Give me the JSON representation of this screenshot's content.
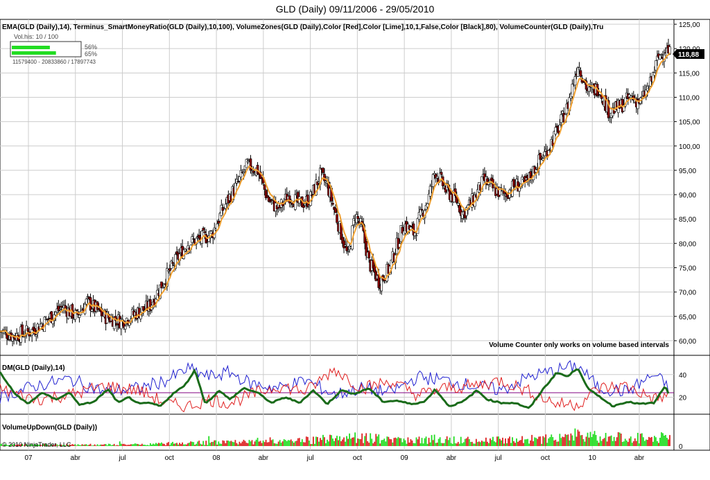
{
  "title": "GLD (Daily)  09/11/2006 - 29/05/2010",
  "indicator_label": "EMA(GLD (Daily),14), Terminus_SmartMoneyRatio(GLD (Daily),10,100), VolumeZones(GLD (Daily),Color [Red],Color [Lime],10,1,False,Color [Black],80), VolumeCounter(GLD (Daily),Tru",
  "volhis": {
    "label": "Vol.his: 10 / 100",
    "bar1_pct": "56%",
    "bar1_fraction": 0.56,
    "bar2_pct": "65%",
    "bar2_fraction": 0.65,
    "range_text": "11579400   -   20833860 / 17897743"
  },
  "last_price_label": "118,88",
  "note": "Volume Counter only works on volume based intervals",
  "dm_label": "DM(GLD (Daily),14)",
  "vud_label": "VolumeUpDown(GLD (Daily))",
  "copyright": "© 2010 NinjaTrader, LLC",
  "colors": {
    "up": "#000000",
    "down": "#8b0000",
    "ema": "#f0a030",
    "dm_plus": "#2020d0",
    "dm_minus": "#e02020",
    "adx": "#1a6b1a",
    "vol_up": "#22dd22",
    "vol_down": "#dd2222",
    "grid": "#cccccc"
  },
  "chart_data": [
    {
      "type": "line",
      "name": "price",
      "ylim": [
        57,
        126
      ],
      "y_ticks": [
        "125,00",
        "120,00",
        "115,00",
        "110,00",
        "105,00",
        "100,00",
        "95,00",
        "90,00",
        "85,00",
        "80,00",
        "75,00",
        "70,00",
        "65,00",
        "60,00"
      ],
      "x_ticks": [
        "07",
        "abr",
        "jul",
        "oct",
        "08",
        "abr",
        "jul",
        "oct",
        "09",
        "abr",
        "jul",
        "oct",
        "10",
        "abr"
      ],
      "anchors": [
        [
          0,
          62
        ],
        [
          20,
          61
        ],
        [
          45,
          62
        ],
        [
          65,
          64
        ],
        [
          90,
          67
        ],
        [
          110,
          65
        ],
        [
          125,
          68
        ],
        [
          150,
          65
        ],
        [
          175,
          64
        ],
        [
          200,
          66
        ],
        [
          215,
          67
        ],
        [
          230,
          71
        ],
        [
          255,
          77
        ],
        [
          270,
          80
        ],
        [
          290,
          81
        ],
        [
          305,
          82
        ],
        [
          320,
          87
        ],
        [
          340,
          92
        ],
        [
          355,
          96
        ],
        [
          370,
          95
        ],
        [
          385,
          89
        ],
        [
          400,
          87
        ],
        [
          415,
          90
        ],
        [
          430,
          88
        ],
        [
          445,
          89
        ],
        [
          460,
          94
        ],
        [
          470,
          92
        ],
        [
          480,
          87
        ],
        [
          490,
          82
        ],
        [
          500,
          77
        ],
        [
          510,
          86
        ],
        [
          520,
          83
        ],
        [
          530,
          76
        ],
        [
          545,
          72
        ],
        [
          560,
          75
        ],
        [
          580,
          84
        ],
        [
          595,
          82
        ],
        [
          605,
          86
        ],
        [
          615,
          89
        ],
        [
          625,
          95
        ],
        [
          640,
          91
        ],
        [
          655,
          89
        ],
        [
          665,
          86
        ],
        [
          680,
          89
        ],
        [
          695,
          93
        ],
        [
          710,
          91
        ],
        [
          725,
          90
        ],
        [
          740,
          92
        ],
        [
          755,
          92
        ],
        [
          770,
          96
        ],
        [
          785,
          99
        ],
        [
          800,
          103
        ],
        [
          815,
          108
        ],
        [
          830,
          117
        ],
        [
          845,
          111
        ],
        [
          860,
          112
        ],
        [
          875,
          107
        ],
        [
          890,
          108
        ],
        [
          905,
          110
        ],
        [
          920,
          109
        ],
        [
          935,
          113
        ],
        [
          945,
          118
        ],
        [
          955,
          120
        ],
        [
          962,
          119
        ]
      ],
      "last": 118.88
    },
    {
      "type": "line",
      "name": "DM(GLD (Daily),14)",
      "ylim": [
        5,
        57
      ],
      "y_ticks": [
        "40",
        "20"
      ],
      "series": [
        {
          "name": "ADX",
          "anchors": [
            [
              0,
              42
            ],
            [
              20,
              24
            ],
            [
              40,
              14
            ],
            [
              60,
              24
            ],
            [
              80,
              18
            ],
            [
              100,
              24
            ],
            [
              115,
              13
            ],
            [
              135,
              16
            ],
            [
              155,
              27
            ],
            [
              170,
              15
            ],
            [
              185,
              20
            ],
            [
              200,
              14
            ],
            [
              215,
              15
            ],
            [
              230,
              12
            ],
            [
              250,
              24
            ],
            [
              265,
              30
            ],
            [
              280,
              44
            ],
            [
              295,
              14
            ],
            [
              315,
              26
            ],
            [
              330,
              18
            ],
            [
              350,
              28
            ],
            [
              370,
              24
            ],
            [
              390,
              15
            ],
            [
              410,
              20
            ],
            [
              430,
              15
            ],
            [
              450,
              26
            ],
            [
              470,
              14
            ],
            [
              490,
              26
            ],
            [
              510,
              23
            ],
            [
              530,
              28
            ],
            [
              550,
              16
            ],
            [
              570,
              17
            ],
            [
              590,
              14
            ],
            [
              610,
              16
            ],
            [
              625,
              27
            ],
            [
              645,
              12
            ],
            [
              665,
              16
            ],
            [
              685,
              26
            ],
            [
              700,
              18
            ],
            [
              720,
              15
            ],
            [
              740,
              15
            ],
            [
              760,
              10
            ],
            [
              780,
              27
            ],
            [
              800,
              42
            ],
            [
              815,
              38
            ],
            [
              830,
              46
            ],
            [
              845,
              27
            ],
            [
              865,
              19
            ],
            [
              880,
              12
            ],
            [
              900,
              16
            ],
            [
              920,
              14
            ],
            [
              940,
              15
            ],
            [
              955,
              30
            ],
            [
              962,
              20
            ]
          ]
        },
        {
          "name": "DM+",
          "anchors": [
            [
              0,
              20
            ],
            [
              50,
              30
            ],
            [
              100,
              36
            ],
            [
              150,
              25
            ],
            [
              200,
              28
            ],
            [
              240,
              35
            ],
            [
              270,
              45
            ],
            [
              300,
              38
            ],
            [
              330,
              42
            ],
            [
              360,
              32
            ],
            [
              400,
              28
            ],
            [
              440,
              35
            ],
            [
              480,
              22
            ],
            [
              520,
              28
            ],
            [
              560,
              24
            ],
            [
              600,
              38
            ],
            [
              640,
              35
            ],
            [
              680,
              30
            ],
            [
              720,
              26
            ],
            [
              760,
              38
            ],
            [
              800,
              44
            ],
            [
              830,
              48
            ],
            [
              860,
              28
            ],
            [
              900,
              25
            ],
            [
              940,
              40
            ],
            [
              962,
              28
            ]
          ]
        },
        {
          "name": "DM-",
          "anchors": [
            [
              0,
              27
            ],
            [
              50,
              18
            ],
            [
              100,
              22
            ],
            [
              150,
              30
            ],
            [
              200,
              26
            ],
            [
              240,
              14
            ],
            [
              270,
              12
            ],
            [
              300,
              18
            ],
            [
              330,
              15
            ],
            [
              360,
              22
            ],
            [
              400,
              30
            ],
            [
              440,
              25
            ],
            [
              480,
              45
            ],
            [
              520,
              28
            ],
            [
              560,
              34
            ],
            [
              600,
              22
            ],
            [
              640,
              28
            ],
            [
              680,
              30
            ],
            [
              720,
              35
            ],
            [
              760,
              25
            ],
            [
              800,
              14
            ],
            [
              830,
              14
            ],
            [
              860,
              28
            ],
            [
              900,
              30
            ],
            [
              940,
              18
            ],
            [
              962,
              22
            ]
          ]
        }
      ]
    },
    {
      "type": "bar",
      "name": "VolumeUpDown(GLD (Daily))",
      "ylim": [
        0,
        40
      ],
      "y_ticks": [
        "0"
      ],
      "vol_anchors": [
        [
          0,
          2
        ],
        [
          200,
          2
        ],
        [
          250,
          4
        ],
        [
          300,
          5
        ],
        [
          400,
          6
        ],
        [
          470,
          10
        ],
        [
          520,
          14
        ],
        [
          560,
          8
        ],
        [
          620,
          10
        ],
        [
          700,
          8
        ],
        [
          780,
          10
        ],
        [
          830,
          16
        ],
        [
          870,
          12
        ],
        [
          930,
          12
        ],
        [
          962,
          12
        ]
      ]
    }
  ]
}
